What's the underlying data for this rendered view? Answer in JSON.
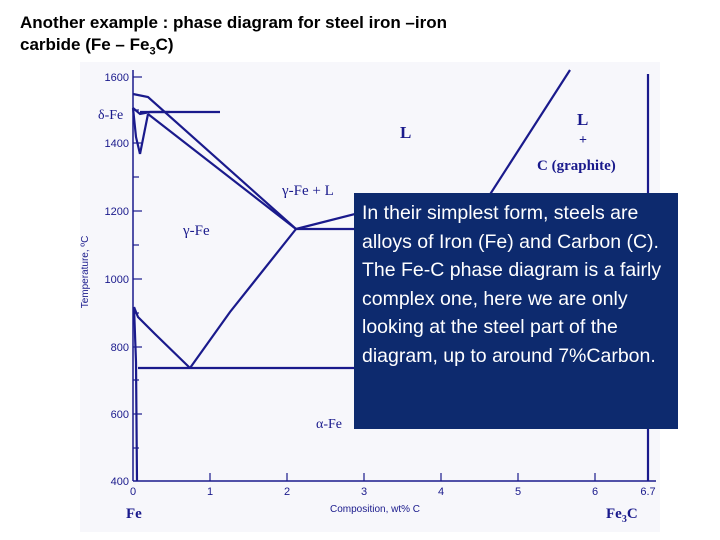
{
  "slide": {
    "title_line1": "Another example : phase diagram for steel iron –iron",
    "title_line2_prefix": "carbide  (Fe – Fe",
    "title_sub": "3",
    "title_line2_suffix": "C)"
  },
  "diagram": {
    "y_axis_label": "Temperature, ºC",
    "x_axis_label": "Composition, wt% C",
    "y_ticks": [
      "1600",
      "1400",
      "1200",
      "1000",
      "800",
      "600",
      "400"
    ],
    "x_ticks": [
      "0",
      "1",
      "2",
      "3",
      "4",
      "5",
      "6",
      "6.7"
    ],
    "x_left_component": "Fe",
    "x_right_component": "Fe",
    "x_right_sub": "3",
    "x_right_suffix": "C",
    "regions": {
      "delta_fe": "δ-Fe",
      "liquid": "L",
      "liquid_graphite_l": "L",
      "liquid_graphite_plus": "+",
      "liquid_graphite_c": "C (graphite)",
      "gamma_plus_l": "γ-Fe + L",
      "gamma_fe": "γ-Fe",
      "alpha_fe": "α-Fe"
    },
    "colors": {
      "line": "#1a1a8c",
      "label": "#1a1a8c",
      "overlay_bg": "#0d2a6e",
      "overlay_text": "#ffffff"
    }
  },
  "overlay": {
    "text": "In their simplest form, steels are alloys of Iron (Fe) and Carbon (C). The Fe-C phase diagram is a fairly complex one, here we are only looking at the steel part of the diagram, up to around 7%Carbon."
  }
}
